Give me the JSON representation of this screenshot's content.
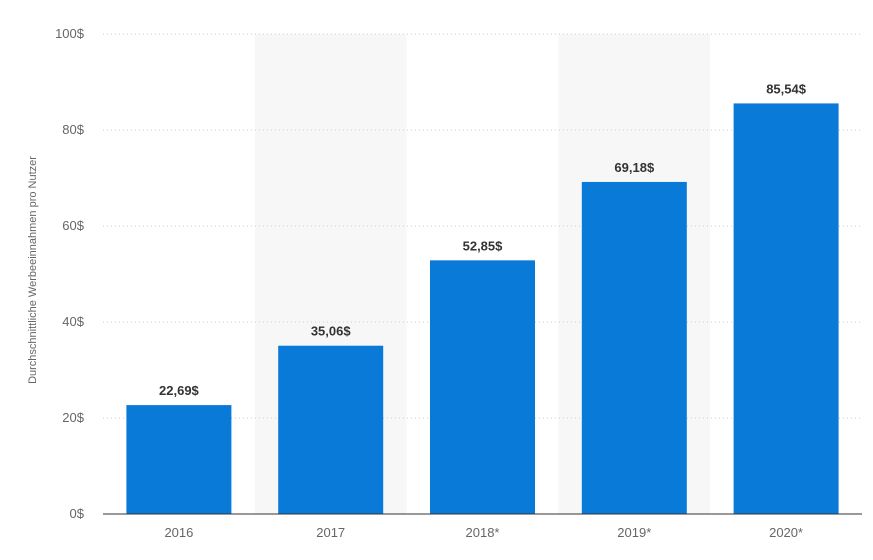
{
  "chart_data": {
    "type": "bar",
    "title": "",
    "xlabel": "",
    "ylabel": "Durchschnittliche Werbeeinnahmen pro Nutzer",
    "categories": [
      "2016",
      "2017",
      "2018*",
      "2019*",
      "2020*"
    ],
    "values": [
      22.69,
      35.06,
      52.85,
      69.18,
      85.54
    ],
    "value_labels": [
      "22,69$",
      "35,06$",
      "52,85$",
      "69,18$",
      "85,54$"
    ],
    "ylim": [
      0,
      100
    ],
    "y_ticks": [
      0,
      20,
      40,
      60,
      80,
      100
    ],
    "y_tick_labels": [
      "0$",
      "20$",
      "40$",
      "60$",
      "80$",
      "100$"
    ],
    "grid": true,
    "legend": "none",
    "colors": {
      "bar": "#0a7ad9",
      "grid": "#cccccc",
      "band": "#f7f7f7",
      "axis": "#333333"
    }
  }
}
